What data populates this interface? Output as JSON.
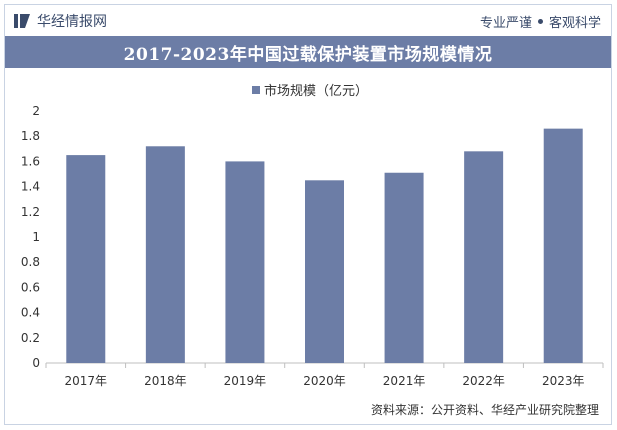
{
  "header": {
    "brand_name": "华经情报网",
    "slogan_left": "专业严谨",
    "slogan_right": "客观科学"
  },
  "title": "2017-2023年中国过载保护装置市场规模情况",
  "source": "资料来源：公开资料、华经产业研究院整理",
  "colors": {
    "bar": "#6c7da6",
    "title_bg": "#6c7da6"
  },
  "chart_data": {
    "type": "bar",
    "categories": [
      "2017年",
      "2018年",
      "2019年",
      "2020年",
      "2021年",
      "2022年",
      "2023年"
    ],
    "series": [
      {
        "name": "市场规模（亿元）",
        "values": [
          1.65,
          1.72,
          1.6,
          1.45,
          1.51,
          1.68,
          1.86
        ]
      }
    ],
    "ylim": [
      0,
      2
    ],
    "yticks": [
      "0",
      "0.2",
      "0.4",
      "0.6",
      "0.8",
      "1",
      "1.2",
      "1.4",
      "1.6",
      "1.8",
      "2"
    ],
    "ytick_values": [
      0,
      0.2,
      0.4,
      0.6,
      0.8,
      1,
      1.2,
      1.4,
      1.6,
      1.8,
      2
    ],
    "grid": false,
    "legend_position": "top-center"
  }
}
